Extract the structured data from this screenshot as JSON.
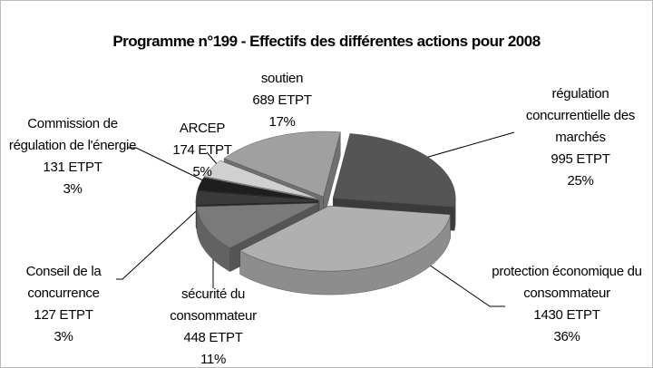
{
  "chart_data": {
    "type": "pie3d",
    "title": "Programme n°199 - Effectifs des différentes actions pour 2008",
    "categories": [
      "régulation concurrentielle des marchés",
      "protection économique du consommateur",
      "sécurité du consommateur",
      "Conseil de la concurrence",
      "Commission de régulation de l'énergie",
      "ARCEP",
      "soutien"
    ],
    "values": [
      995,
      1430,
      448,
      127,
      131,
      174,
      689
    ],
    "value_labels": [
      "995 ETPT",
      "1430 ETPT",
      "448 ETPT",
      "127 ETPT",
      "131 ETPT",
      "174 ETPT",
      "689 ETPT"
    ],
    "percent_labels": [
      "25%",
      "36%",
      "11%",
      "3%",
      "3%",
      "5%",
      "17%"
    ],
    "colors": [
      "#555555",
      "#b0b0b0",
      "#7a7a7a",
      "#3a3a3a",
      "#1e1e1e",
      "#d0d0d0",
      "#a0a0a0"
    ]
  }
}
